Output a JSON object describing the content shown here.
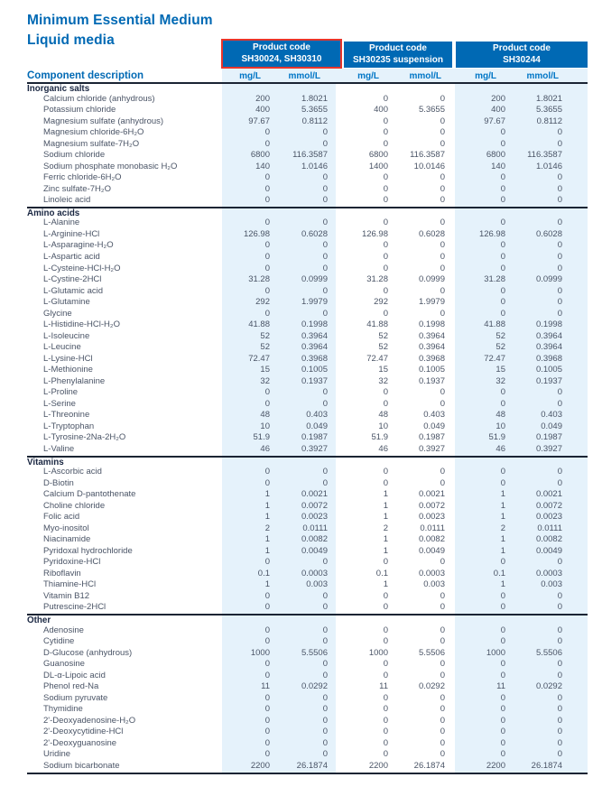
{
  "page": {
    "title_line1": "Minimum Essential Medium",
    "title_line2": "Liquid media"
  },
  "colors": {
    "brand_blue": "#0069b4",
    "unit_label_blue": "#0076c6",
    "band_light_blue": "#e5f2fb",
    "highlight_red": "#e8352b",
    "rule_dark_navy": "#1a2433",
    "body_text": "#4a5466"
  },
  "table": {
    "component_header": "Component description",
    "unit_mg": "mg/L",
    "unit_mmol": "mmol/L",
    "product_columns": [
      {
        "label": "Product code",
        "code": "SH30024, SH30310",
        "highlighted": true
      },
      {
        "label": "Product code",
        "code": "SH30235 suspension",
        "highlighted": false
      },
      {
        "label": "Product code",
        "code": "SH30244",
        "highlighted": false
      }
    ],
    "sections": [
      {
        "name": "Inorganic salts",
        "rows": [
          {
            "component": "Calcium chloride (anhydrous)",
            "values": [
              "200",
              "1.8021",
              "0",
              "0",
              "200",
              "1.8021"
            ]
          },
          {
            "component": "Potassium chloride",
            "values": [
              "400",
              "5.3655",
              "400",
              "5.3655",
              "400",
              "5.3655"
            ]
          },
          {
            "component": "Magnesium sulfate (anhydrous)",
            "values": [
              "97.67",
              "0.8112",
              "0",
              "0",
              "97.67",
              "0.8112"
            ]
          },
          {
            "component": "Magnesium chloride-6H₂O",
            "values": [
              "0",
              "0",
              "0",
              "0",
              "0",
              "0"
            ]
          },
          {
            "component": "Magnesium sulfate-7H₂O",
            "values": [
              "0",
              "0",
              "0",
              "0",
              "0",
              "0"
            ]
          },
          {
            "component": "Sodium chloride",
            "values": [
              "6800",
              "116.3587",
              "6800",
              "116.3587",
              "6800",
              "116.3587"
            ]
          },
          {
            "component": "Sodium phosphate monobasic H₂O",
            "values": [
              "140",
              "1.0146",
              "1400",
              "10.0146",
              "140",
              "1.0146"
            ]
          },
          {
            "component": "Ferric chloride-6H₂O",
            "values": [
              "0",
              "0",
              "0",
              "0",
              "0",
              "0"
            ]
          },
          {
            "component": "Zinc sulfate-7H₂O",
            "values": [
              "0",
              "0",
              "0",
              "0",
              "0",
              "0"
            ]
          },
          {
            "component": "Linoleic acid",
            "values": [
              "0",
              "0",
              "0",
              "0",
              "0",
              "0"
            ]
          }
        ]
      },
      {
        "name": "Amino acids",
        "rows": [
          {
            "component": "L-Alanine",
            "values": [
              "0",
              "0",
              "0",
              "0",
              "0",
              "0"
            ]
          },
          {
            "component": "L-Arginine-HCl",
            "values": [
              "126.98",
              "0.6028",
              "126.98",
              "0.6028",
              "126.98",
              "0.6028"
            ]
          },
          {
            "component": "L-Asparagine-H₂O",
            "values": [
              "0",
              "0",
              "0",
              "0",
              "0",
              "0"
            ]
          },
          {
            "component": "L-Aspartic acid",
            "values": [
              "0",
              "0",
              "0",
              "0",
              "0",
              "0"
            ]
          },
          {
            "component": "L-Cysteine-HCl-H₂O",
            "values": [
              "0",
              "0",
              "0",
              "0",
              "0",
              "0"
            ]
          },
          {
            "component": "L-Cystine-2HCl",
            "values": [
              "31.28",
              "0.0999",
              "31.28",
              "0.0999",
              "31.28",
              "0.0999"
            ]
          },
          {
            "component": "L-Glutamic acid",
            "values": [
              "0",
              "0",
              "0",
              "0",
              "0",
              "0"
            ]
          },
          {
            "component": "L-Glutamine",
            "values": [
              "292",
              "1.9979",
              "292",
              "1.9979",
              "0",
              "0"
            ]
          },
          {
            "component": "Glycine",
            "values": [
              "0",
              "0",
              "0",
              "0",
              "0",
              "0"
            ]
          },
          {
            "component": "L-Histidine-HCl-H₂O",
            "values": [
              "41.88",
              "0.1998",
              "41.88",
              "0.1998",
              "41.88",
              "0.1998"
            ]
          },
          {
            "component": "L-Isoleucine",
            "values": [
              "52",
              "0.3964",
              "52",
              "0.3964",
              "52",
              "0.3964"
            ]
          },
          {
            "component": "L-Leucine",
            "values": [
              "52",
              "0.3964",
              "52",
              "0.3964",
              "52",
              "0.3964"
            ]
          },
          {
            "component": "L-Lysine-HCl",
            "values": [
              "72.47",
              "0.3968",
              "72.47",
              "0.3968",
              "72.47",
              "0.3968"
            ]
          },
          {
            "component": "L-Methionine",
            "values": [
              "15",
              "0.1005",
              "15",
              "0.1005",
              "15",
              "0.1005"
            ]
          },
          {
            "component": "L-Phenylalanine",
            "values": [
              "32",
              "0.1937",
              "32",
              "0.1937",
              "32",
              "0.1937"
            ]
          },
          {
            "component": "L-Proline",
            "values": [
              "0",
              "0",
              "0",
              "0",
              "0",
              "0"
            ]
          },
          {
            "component": "L-Serine",
            "values": [
              "0",
              "0",
              "0",
              "0",
              "0",
              "0"
            ]
          },
          {
            "component": "L-Threonine",
            "values": [
              "48",
              "0.403",
              "48",
              "0.403",
              "48",
              "0.403"
            ]
          },
          {
            "component": "L-Tryptophan",
            "values": [
              "10",
              "0.049",
              "10",
              "0.049",
              "10",
              "0.049"
            ]
          },
          {
            "component": "L-Tyrosine-2Na-2H₂O",
            "values": [
              "51.9",
              "0.1987",
              "51.9",
              "0.1987",
              "51.9",
              "0.1987"
            ]
          },
          {
            "component": "L-Valine",
            "values": [
              "46",
              "0.3927",
              "46",
              "0.3927",
              "46",
              "0.3927"
            ]
          }
        ]
      },
      {
        "name": "Vitamins",
        "rows": [
          {
            "component": "L-Ascorbic acid",
            "values": [
              "0",
              "0",
              "0",
              "0",
              "0",
              "0"
            ]
          },
          {
            "component": "D-Biotin",
            "values": [
              "0",
              "0",
              "0",
              "0",
              "0",
              "0"
            ]
          },
          {
            "component": "Calcium D-pantothenate",
            "values": [
              "1",
              "0.0021",
              "1",
              "0.0021",
              "1",
              "0.0021"
            ]
          },
          {
            "component": "Choline chloride",
            "values": [
              "1",
              "0.0072",
              "1",
              "0.0072",
              "1",
              "0.0072"
            ]
          },
          {
            "component": "Folic acid",
            "values": [
              "1",
              "0.0023",
              "1",
              "0.0023",
              "1",
              "0.0023"
            ]
          },
          {
            "component": "Myo-inositol",
            "values": [
              "2",
              "0.0111",
              "2",
              "0.0111",
              "2",
              "0.0111"
            ]
          },
          {
            "component": "Niacinamide",
            "values": [
              "1",
              "0.0082",
              "1",
              "0.0082",
              "1",
              "0.0082"
            ]
          },
          {
            "component": "Pyridoxal hydrochloride",
            "values": [
              "1",
              "0.0049",
              "1",
              "0.0049",
              "1",
              "0.0049"
            ]
          },
          {
            "component": "Pyridoxine-HCl",
            "values": [
              "0",
              "0",
              "0",
              "0",
              "0",
              "0"
            ]
          },
          {
            "component": "Riboflavin",
            "values": [
              "0.1",
              "0.0003",
              "0.1",
              "0.0003",
              "0.1",
              "0.0003"
            ]
          },
          {
            "component": "Thiamine-HCl",
            "values": [
              "1",
              "0.003",
              "1",
              "0.003",
              "1",
              "0.003"
            ]
          },
          {
            "component": "Vitamin B12",
            "values": [
              "0",
              "0",
              "0",
              "0",
              "0",
              "0"
            ]
          },
          {
            "component": "Putrescine-2HCl",
            "values": [
              "0",
              "0",
              "0",
              "0",
              "0",
              "0"
            ]
          }
        ]
      },
      {
        "name": "Other",
        "rows": [
          {
            "component": "Adenosine",
            "values": [
              "0",
              "0",
              "0",
              "0",
              "0",
              "0"
            ]
          },
          {
            "component": "Cytidine",
            "values": [
              "0",
              "0",
              "0",
              "0",
              "0",
              "0"
            ]
          },
          {
            "component": "D-Glucose (anhydrous)",
            "values": [
              "1000",
              "5.5506",
              "1000",
              "5.5506",
              "1000",
              "5.5506"
            ]
          },
          {
            "component": "Guanosine",
            "values": [
              "0",
              "0",
              "0",
              "0",
              "0",
              "0"
            ]
          },
          {
            "component": "DL-α-Lipoic acid",
            "values": [
              "0",
              "0",
              "0",
              "0",
              "0",
              "0"
            ]
          },
          {
            "component": "Phenol red-Na",
            "values": [
              "11",
              "0.0292",
              "11",
              "0.0292",
              "11",
              "0.0292"
            ]
          },
          {
            "component": "Sodium pyruvate",
            "values": [
              "0",
              "0",
              "0",
              "0",
              "0",
              "0"
            ]
          },
          {
            "component": "Thymidine",
            "values": [
              "0",
              "0",
              "0",
              "0",
              "0",
              "0"
            ]
          },
          {
            "component": "2'-Deoxyadenosine-H₂O",
            "values": [
              "0",
              "0",
              "0",
              "0",
              "0",
              "0"
            ]
          },
          {
            "component": "2'-Deoxycytidine-HCl",
            "values": [
              "0",
              "0",
              "0",
              "0",
              "0",
              "0"
            ]
          },
          {
            "component": "2'-Deoxyguanosine",
            "values": [
              "0",
              "0",
              "0",
              "0",
              "0",
              "0"
            ]
          },
          {
            "component": "Uridine",
            "values": [
              "0",
              "0",
              "0",
              "0",
              "0",
              "0"
            ]
          },
          {
            "component": "Sodium bicarbonate",
            "values": [
              "2200",
              "26.1874",
              "2200",
              "26.1874",
              "2200",
              "26.1874"
            ]
          }
        ]
      }
    ]
  }
}
